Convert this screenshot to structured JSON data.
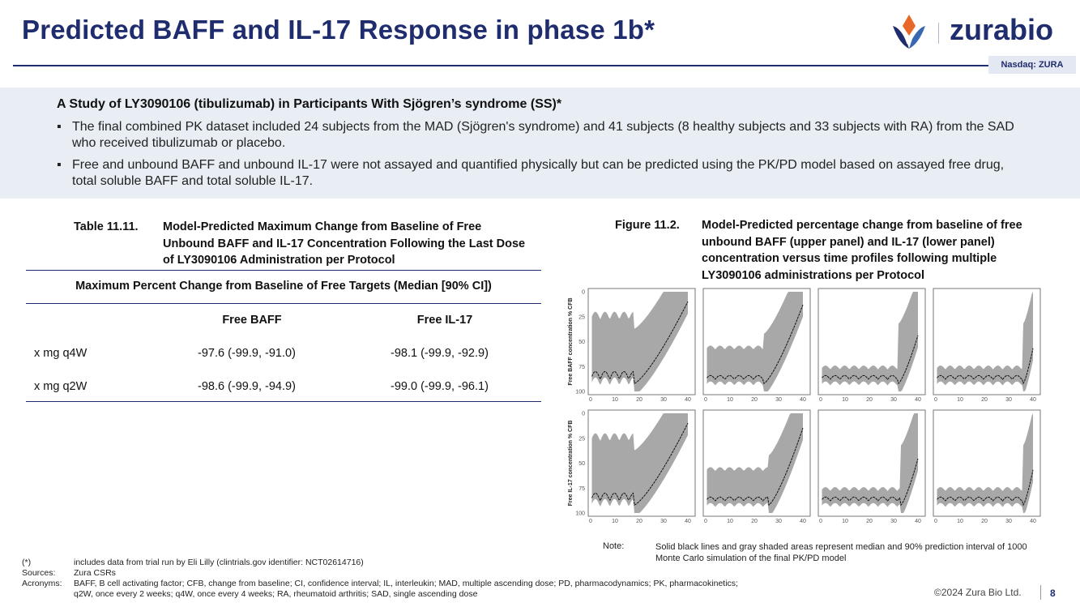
{
  "header": {
    "title": "Predicted BAFF and IL-17 Response in phase 1b*",
    "logo_text": "zurabio",
    "ticker": "Nasdaq: ZURA",
    "colors": {
      "navy": "#1f2d6e",
      "orange": "#e8682a",
      "blue": "#3a67b1"
    }
  },
  "intro": {
    "heading": "A Study of LY3090106 (tibulizumab) in Participants With Sjögren’s syndrome (SS)*",
    "bullet_marker": "▪",
    "bullets": [
      "The final combined PK dataset included 24 subjects from the MAD (Sjögren's syndrome) and 41 subjects (8 healthy subjects and 33 subjects with RA) from the SAD who received tibulizumab or placebo.",
      "Free and unbound BAFF and unbound IL-17 were not assayed and quantified physically but can be predicted using the PK/PD model based on assayed free drug, total soluble BAFF and total soluble IL-17."
    ]
  },
  "table": {
    "caption_number": "Table 11.11.",
    "caption_text": "Model-Predicted Maximum Change from Baseline of Free Unbound BAFF and IL-17 Concentration Following the Last Dose of LY3090106 Administration per Protocol",
    "header": "Maximum Percent Change from Baseline of Free Targets (Median [90% CI])",
    "columns": [
      "",
      "Free BAFF",
      "Free IL-17"
    ],
    "rows": [
      {
        "label": "x mg q4W",
        "baff": "-97.6 (-99.9, -91.0)",
        "il17": "-98.1 (-99.9, -92.9)"
      },
      {
        "label": "x mg q2W",
        "baff": "-98.6 (-99.9, -94.9)",
        "il17": "-99.0 (-99.9, -96.1)"
      }
    ]
  },
  "chart_data": {
    "type": "area",
    "caption_number": "Figure 11.2.",
    "caption_text": "Model-Predicted percentage change from baseline of free unbound BAFF (upper panel) and IL-17 (lower panel) concentration versus time profiles following multiple LY3090106 administrations per Protocol",
    "ylabels": [
      "Free BAFF concentration % CFB",
      "Free IL-17 concentration % CFB"
    ],
    "x_ticks": [
      "0",
      "10",
      "20",
      "30",
      "40"
    ],
    "y_ticks": [
      "0",
      "25",
      "50",
      "75",
      "100"
    ],
    "xlim": [
      0,
      42
    ],
    "ylim": [
      0,
      100
    ],
    "panels_per_row": 4,
    "series_description": "median line with 90% prediction interval band",
    "note_label": "Note:",
    "note_text": "Solid black lines and gray shaded areas represent median and 90% prediction interval of 1000 Monte Carlo simulation of the final PK/PD model"
  },
  "footnotes": [
    {
      "key": "(*)",
      "value": "includes data from trial run by Eli Lilly (clintrials.gov identifier: NCT02614716)"
    },
    {
      "key": "Sources:",
      "value": "Zura CSRs"
    },
    {
      "key": "Acronyms:",
      "value": "BAFF, B cell activating factor; CFB, change from baseline; CI, confidence interval; IL, interleukin; MAD, multiple ascending dose; PD, pharmacodynamics; PK, pharmacokinetics;"
    },
    {
      "key": "",
      "value": "q2W, once every 2 weeks; q4W, once every 4 weeks; RA, rheumatoid arthritis; SAD, single ascending dose"
    }
  ],
  "footer": {
    "copyright": "©2024 Zura Bio Ltd.",
    "page": "8"
  }
}
